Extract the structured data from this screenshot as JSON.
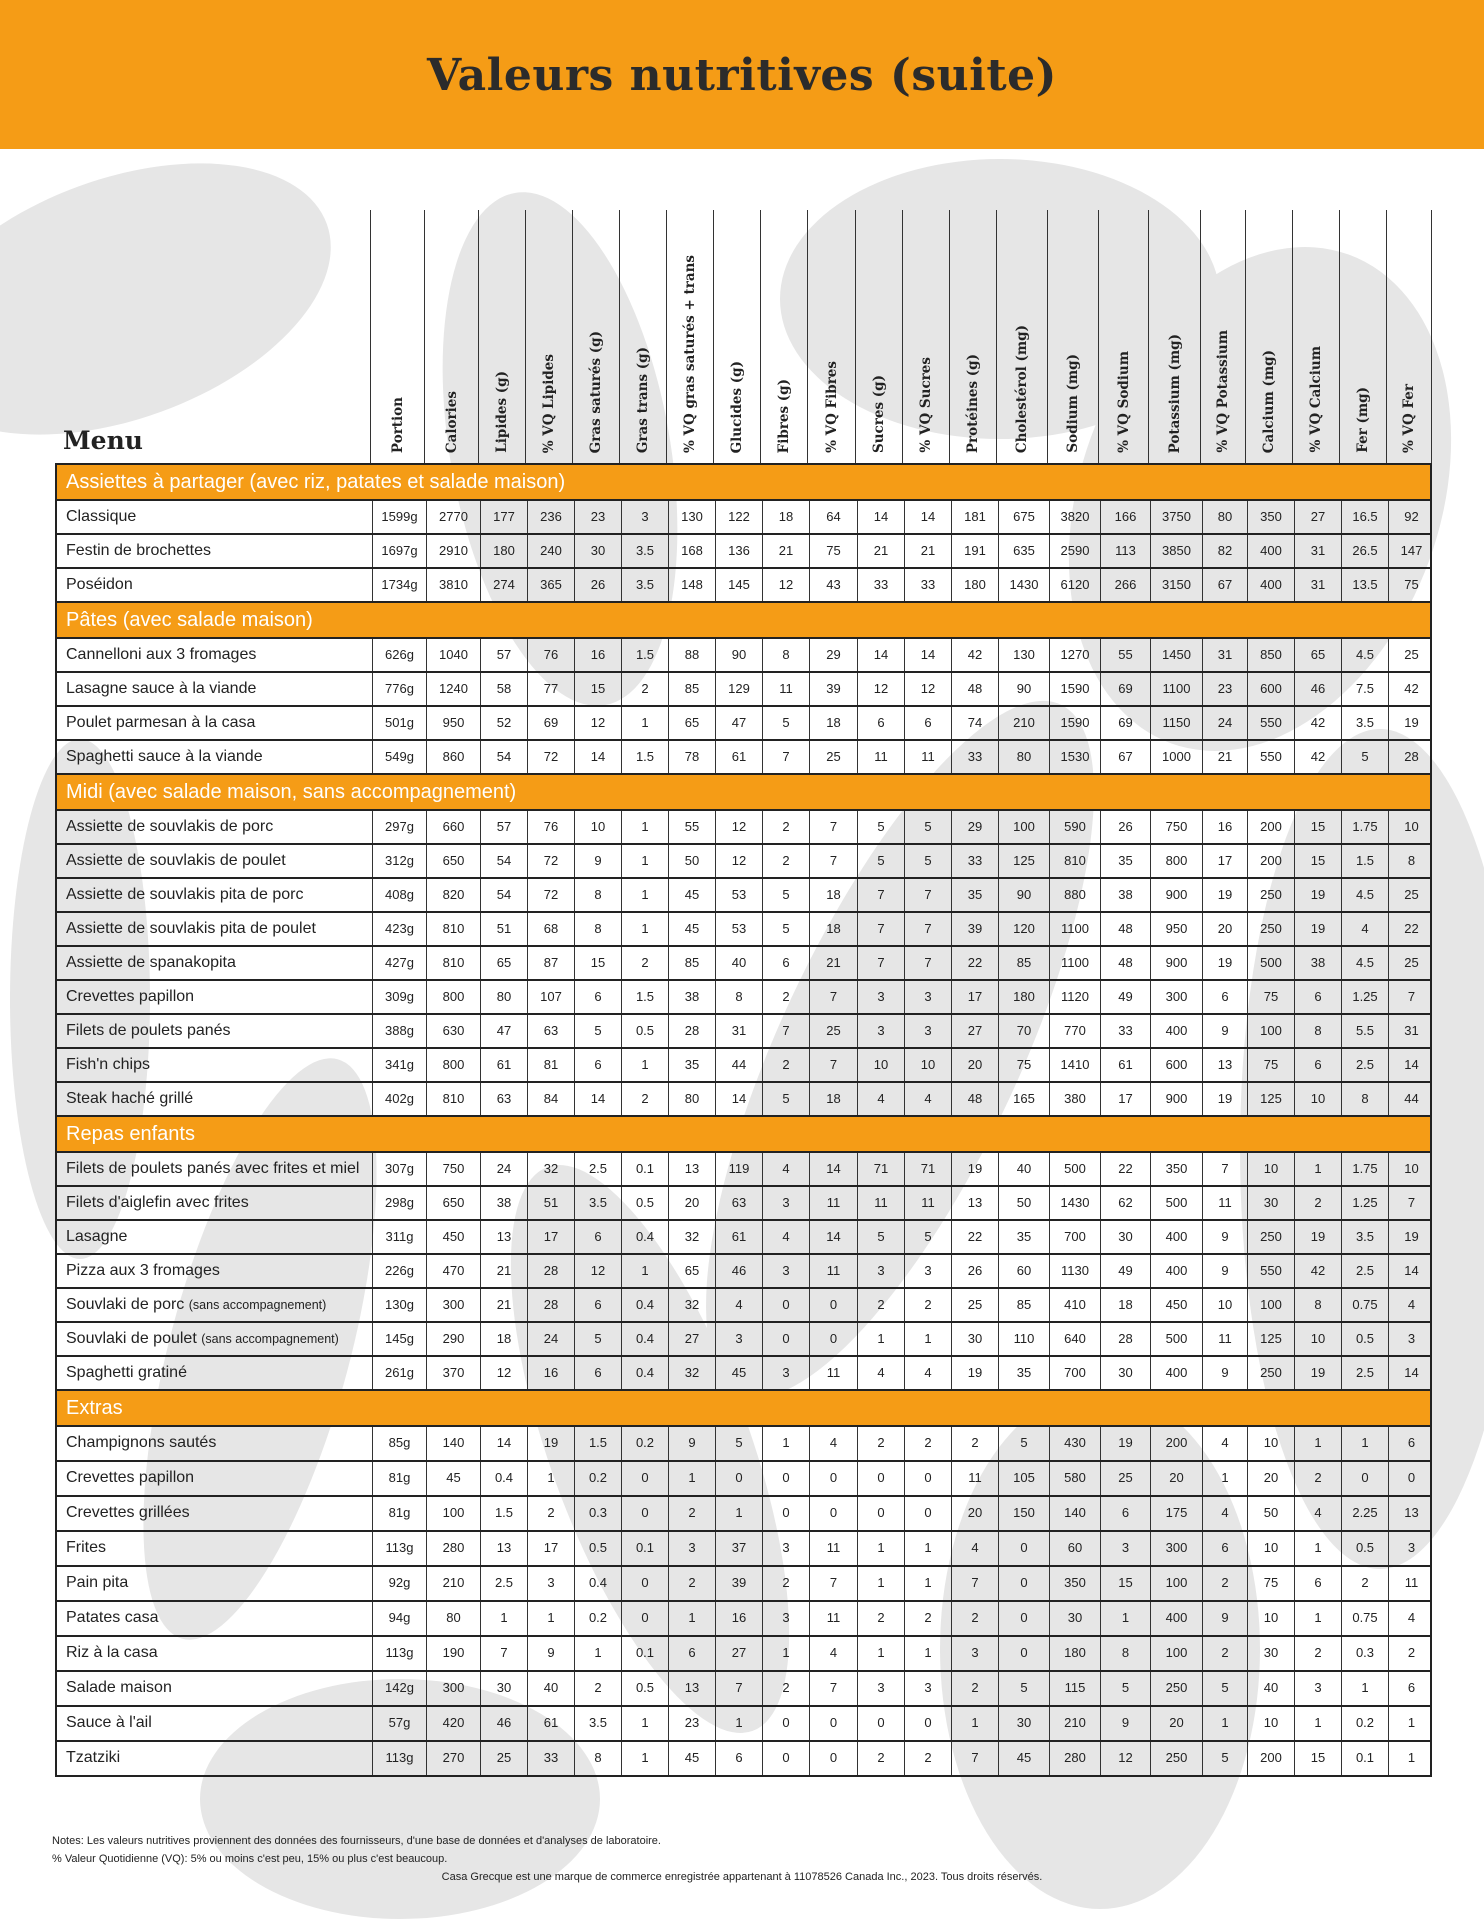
{
  "header": {
    "title": "Valeurs nutritives (suite)",
    "band_color": "#F59C16"
  },
  "table": {
    "menu_label": "Menu",
    "columns": [
      "Portion",
      "Calories",
      "Lipides (g)",
      "% VQ Lipides",
      "Gras saturés (g)",
      "Gras trans (g)",
      "% VQ gras saturés + trans",
      "Glucides (g)",
      "Fibres (g)",
      "% VQ Fibres",
      "Sucres (g)",
      "% VQ Sucres",
      "Protéines (g)",
      "Cholestérol (mg)",
      "Sodium (mg)",
      "% VQ Sodium",
      "Potassium (mg)",
      "% VQ Potassium",
      "Calcium (mg)",
      "% VQ Calcium",
      "Fer (mg)",
      "% VQ Fer"
    ],
    "sections": [
      {
        "title": "Assiettes à partager (avec riz, patates et salade maison)",
        "rows": [
          {
            "name": "Classique",
            "values": [
              "1599g",
              "2770",
              "177",
              "236",
              "23",
              "3",
              "130",
              "122",
              "18",
              "64",
              "14",
              "14",
              "181",
              "675",
              "3820",
              "166",
              "3750",
              "80",
              "350",
              "27",
              "16.5",
              "92"
            ]
          },
          {
            "name": "Festin de brochettes",
            "values": [
              "1697g",
              "2910",
              "180",
              "240",
              "30",
              "3.5",
              "168",
              "136",
              "21",
              "75",
              "21",
              "21",
              "191",
              "635",
              "2590",
              "113",
              "3850",
              "82",
              "400",
              "31",
              "26.5",
              "147"
            ]
          },
          {
            "name": "Poséidon",
            "values": [
              "1734g",
              "3810",
              "274",
              "365",
              "26",
              "3.5",
              "148",
              "145",
              "12",
              "43",
              "33",
              "33",
              "180",
              "1430",
              "6120",
              "266",
              "3150",
              "67",
              "400",
              "31",
              "13.5",
              "75"
            ]
          }
        ]
      },
      {
        "title": "Pâtes (avec salade maison)",
        "rows": [
          {
            "name": "Cannelloni aux 3 fromages",
            "values": [
              "626g",
              "1040",
              "57",
              "76",
              "16",
              "1.5",
              "88",
              "90",
              "8",
              "29",
              "14",
              "14",
              "42",
              "130",
              "1270",
              "55",
              "1450",
              "31",
              "850",
              "65",
              "4.5",
              "25"
            ]
          },
          {
            "name": "Lasagne sauce à la viande",
            "values": [
              "776g",
              "1240",
              "58",
              "77",
              "15",
              "2",
              "85",
              "129",
              "11",
              "39",
              "12",
              "12",
              "48",
              "90",
              "1590",
              "69",
              "1100",
              "23",
              "600",
              "46",
              "7.5",
              "42"
            ]
          },
          {
            "name": "Poulet parmesan à la casa",
            "values": [
              "501g",
              "950",
              "52",
              "69",
              "12",
              "1",
              "65",
              "47",
              "5",
              "18",
              "6",
              "6",
              "74",
              "210",
              "1590",
              "69",
              "1150",
              "24",
              "550",
              "42",
              "3.5",
              "19"
            ]
          },
          {
            "name": "Spaghetti sauce à la viande",
            "values": [
              "549g",
              "860",
              "54",
              "72",
              "14",
              "1.5",
              "78",
              "61",
              "7",
              "25",
              "11",
              "11",
              "33",
              "80",
              "1530",
              "67",
              "1000",
              "21",
              "550",
              "42",
              "5",
              "28"
            ]
          }
        ]
      },
      {
        "title": "Midi (avec salade maison, sans accompagnement)",
        "rows": [
          {
            "name": "Assiette de souvlakis de porc",
            "values": [
              "297g",
              "660",
              "57",
              "76",
              "10",
              "1",
              "55",
              "12",
              "2",
              "7",
              "5",
              "5",
              "29",
              "100",
              "590",
              "26",
              "750",
              "16",
              "200",
              "15",
              "1.75",
              "10"
            ]
          },
          {
            "name": "Assiette de souvlakis de poulet",
            "values": [
              "312g",
              "650",
              "54",
              "72",
              "9",
              "1",
              "50",
              "12",
              "2",
              "7",
              "5",
              "5",
              "33",
              "125",
              "810",
              "35",
              "800",
              "17",
              "200",
              "15",
              "1.5",
              "8"
            ]
          },
          {
            "name": "Assiette de souvlakis pita de porc",
            "values": [
              "408g",
              "820",
              "54",
              "72",
              "8",
              "1",
              "45",
              "53",
              "5",
              "18",
              "7",
              "7",
              "35",
              "90",
              "880",
              "38",
              "900",
              "19",
              "250",
              "19",
              "4.5",
              "25"
            ]
          },
          {
            "name": "Assiette de souvlakis pita de poulet",
            "values": [
              "423g",
              "810",
              "51",
              "68",
              "8",
              "1",
              "45",
              "53",
              "5",
              "18",
              "7",
              "7",
              "39",
              "120",
              "1100",
              "48",
              "950",
              "20",
              "250",
              "19",
              "4",
              "22"
            ]
          },
          {
            "name": "Assiette de spanakopita",
            "values": [
              "427g",
              "810",
              "65",
              "87",
              "15",
              "2",
              "85",
              "40",
              "6",
              "21",
              "7",
              "7",
              "22",
              "85",
              "1100",
              "48",
              "900",
              "19",
              "500",
              "38",
              "4.5",
              "25"
            ]
          },
          {
            "name": "Crevettes papillon",
            "values": [
              "309g",
              "800",
              "80",
              "107",
              "6",
              "1.5",
              "38",
              "8",
              "2",
              "7",
              "3",
              "3",
              "17",
              "180",
              "1120",
              "49",
              "300",
              "6",
              "75",
              "6",
              "1.25",
              "7"
            ]
          },
          {
            "name": "Filets de poulets panés",
            "values": [
              "388g",
              "630",
              "47",
              "63",
              "5",
              "0.5",
              "28",
              "31",
              "7",
              "25",
              "3",
              "3",
              "27",
              "70",
              "770",
              "33",
              "400",
              "9",
              "100",
              "8",
              "5.5",
              "31"
            ]
          },
          {
            "name": "Fish'n chips",
            "values": [
              "341g",
              "800",
              "61",
              "81",
              "6",
              "1",
              "35",
              "44",
              "2",
              "7",
              "10",
              "10",
              "20",
              "75",
              "1410",
              "61",
              "600",
              "13",
              "75",
              "6",
              "2.5",
              "14"
            ]
          },
          {
            "name": "Steak haché grillé",
            "values": [
              "402g",
              "810",
              "63",
              "84",
              "14",
              "2",
              "80",
              "14",
              "5",
              "18",
              "4",
              "4",
              "48",
              "165",
              "380",
              "17",
              "900",
              "19",
              "125",
              "10",
              "8",
              "44"
            ]
          }
        ]
      },
      {
        "title": "Repas enfants",
        "rows": [
          {
            "name": "Filets de poulets panés avec frites et miel",
            "values": [
              "307g",
              "750",
              "24",
              "32",
              "2.5",
              "0.1",
              "13",
              "119",
              "4",
              "14",
              "71",
              "71",
              "19",
              "40",
              "500",
              "22",
              "350",
              "7",
              "10",
              "1",
              "1.75",
              "10"
            ]
          },
          {
            "name": "Filets d'aiglefin avec frites",
            "values": [
              "298g",
              "650",
              "38",
              "51",
              "3.5",
              "0.5",
              "20",
              "63",
              "3",
              "11",
              "11",
              "11",
              "13",
              "50",
              "1430",
              "62",
              "500",
              "11",
              "30",
              "2",
              "1.25",
              "7"
            ]
          },
          {
            "name": "Lasagne",
            "values": [
              "311g",
              "450",
              "13",
              "17",
              "6",
              "0.4",
              "32",
              "61",
              "4",
              "14",
              "5",
              "5",
              "22",
              "35",
              "700",
              "30",
              "400",
              "9",
              "250",
              "19",
              "3.5",
              "19"
            ]
          },
          {
            "name": "Pizza aux 3 fromages",
            "values": [
              "226g",
              "470",
              "21",
              "28",
              "12",
              "1",
              "65",
              "46",
              "3",
              "11",
              "3",
              "3",
              "26",
              "60",
              "1130",
              "49",
              "400",
              "9",
              "550",
              "42",
              "2.5",
              "14"
            ]
          },
          {
            "name": "Souvlaki de porc",
            "note": "(sans accompagnement)",
            "values": [
              "130g",
              "300",
              "21",
              "28",
              "6",
              "0.4",
              "32",
              "4",
              "0",
              "0",
              "2",
              "2",
              "25",
              "85",
              "410",
              "18",
              "450",
              "10",
              "100",
              "8",
              "0.75",
              "4"
            ]
          },
          {
            "name": "Souvlaki de poulet",
            "note": "(sans accompagnement)",
            "values": [
              "145g",
              "290",
              "18",
              "24",
              "5",
              "0.4",
              "27",
              "3",
              "0",
              "0",
              "1",
              "1",
              "30",
              "110",
              "640",
              "28",
              "500",
              "11",
              "125",
              "10",
              "0.5",
              "3"
            ]
          },
          {
            "name": "Spaghetti gratiné",
            "values": [
              "261g",
              "370",
              "12",
              "16",
              "6",
              "0.4",
              "32",
              "45",
              "3",
              "11",
              "4",
              "4",
              "19",
              "35",
              "700",
              "30",
              "400",
              "9",
              "250",
              "19",
              "2.5",
              "14"
            ]
          }
        ]
      },
      {
        "title": "Extras",
        "rows": [
          {
            "name": "Champignons sautés",
            "values": [
              "85g",
              "140",
              "14",
              "19",
              "1.5",
              "0.2",
              "9",
              "5",
              "1",
              "4",
              "2",
              "2",
              "2",
              "5",
              "430",
              "19",
              "200",
              "4",
              "10",
              "1",
              "1",
              "6"
            ]
          },
          {
            "name": "Crevettes papillon",
            "values": [
              "81g",
              "45",
              "0.4",
              "1",
              "0.2",
              "0",
              "1",
              "0",
              "0",
              "0",
              "0",
              "0",
              "11",
              "105",
              "580",
              "25",
              "20",
              "1",
              "20",
              "2",
              "0",
              "0"
            ]
          },
          {
            "name": "Crevettes grillées",
            "values": [
              "81g",
              "100",
              "1.5",
              "2",
              "0.3",
              "0",
              "2",
              "1",
              "0",
              "0",
              "0",
              "0",
              "20",
              "150",
              "140",
              "6",
              "175",
              "4",
              "50",
              "4",
              "2.25",
              "13"
            ]
          },
          {
            "name": "Frites",
            "values": [
              "113g",
              "280",
              "13",
              "17",
              "0.5",
              "0.1",
              "3",
              "37",
              "3",
              "11",
              "1",
              "1",
              "4",
              "0",
              "60",
              "3",
              "300",
              "6",
              "10",
              "1",
              "0.5",
              "3"
            ]
          },
          {
            "name": "Pain pita",
            "values": [
              "92g",
              "210",
              "2.5",
              "3",
              "0.4",
              "0",
              "2",
              "39",
              "2",
              "7",
              "1",
              "1",
              "7",
              "0",
              "350",
              "15",
              "100",
              "2",
              "75",
              "6",
              "2",
              "11"
            ]
          },
          {
            "name": "Patates casa",
            "values": [
              "94g",
              "80",
              "1",
              "1",
              "0.2",
              "0",
              "1",
              "16",
              "3",
              "11",
              "2",
              "2",
              "2",
              "0",
              "30",
              "1",
              "400",
              "9",
              "10",
              "1",
              "0.75",
              "4"
            ]
          },
          {
            "name": "Riz à la casa",
            "values": [
              "113g",
              "190",
              "7",
              "9",
              "1",
              "0.1",
              "6",
              "27",
              "1",
              "4",
              "1",
              "1",
              "3",
              "0",
              "180",
              "8",
              "100",
              "2",
              "30",
              "2",
              "0.3",
              "2"
            ]
          },
          {
            "name": "Salade maison",
            "values": [
              "142g",
              "300",
              "30",
              "40",
              "2",
              "0.5",
              "13",
              "7",
              "2",
              "7",
              "3",
              "3",
              "2",
              "5",
              "115",
              "5",
              "250",
              "5",
              "40",
              "3",
              "1",
              "6"
            ]
          },
          {
            "name": "Sauce à l'ail",
            "values": [
              "57g",
              "420",
              "46",
              "61",
              "3.5",
              "1",
              "23",
              "1",
              "0",
              "0",
              "0",
              "0",
              "1",
              "30",
              "210",
              "9",
              "20",
              "1",
              "10",
              "1",
              "0.2",
              "1"
            ]
          },
          {
            "name": "Tzatziki",
            "values": [
              "113g",
              "270",
              "25",
              "33",
              "8",
              "1",
              "45",
              "6",
              "0",
              "0",
              "2",
              "2",
              "7",
              "45",
              "280",
              "12",
              "250",
              "5",
              "200",
              "15",
              "0.1",
              "1"
            ]
          }
        ]
      }
    ]
  },
  "footer": {
    "notes_line1": "Notes: Les valeurs nutritives proviennent des données des fournisseurs, d'une base de données et d'analyses de laboratoire.",
    "notes_line2": "% Valeur Quotidienne (VQ): 5% ou moins c'est peu, 15% ou plus c'est beaucoup.",
    "copyright": "Casa Grecque est une marque de commerce enregistrée appartenant à 11078526 Canada Inc., 2023. Tous droits réservés."
  }
}
